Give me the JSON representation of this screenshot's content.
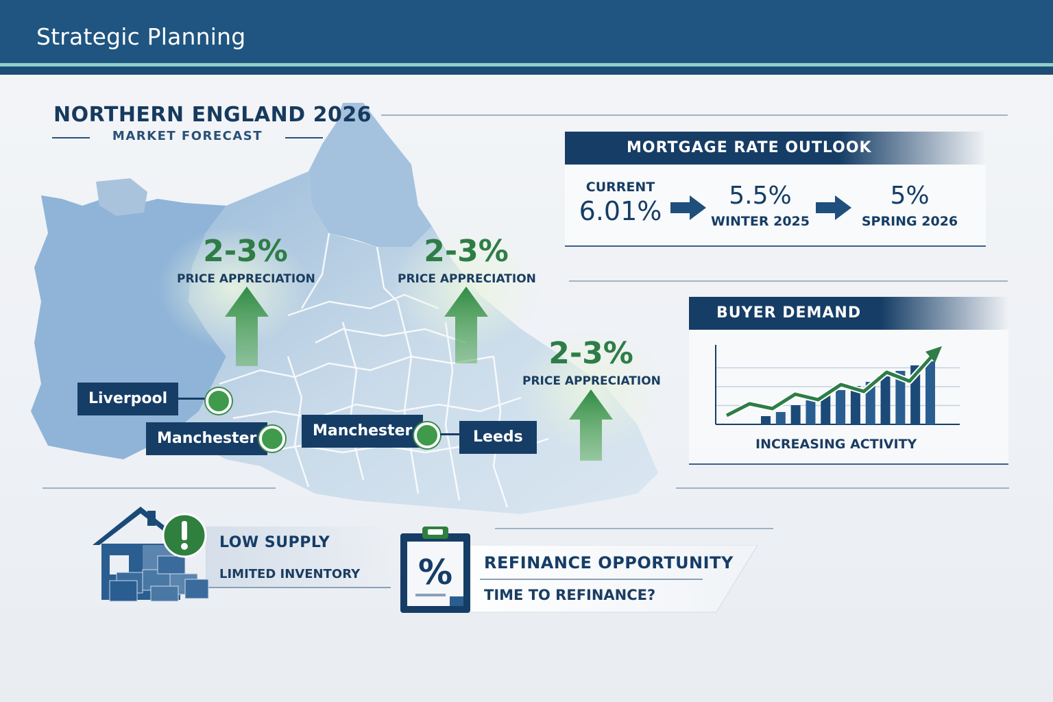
{
  "header": {
    "title": "Strategic Planning"
  },
  "hero": {
    "title": "NORTHERN ENGLAND 2026",
    "subtitle": "MARKET FORECAST"
  },
  "map": {
    "appreciation": [
      {
        "value": "2-3%",
        "label": "PRICE APPRECIATION"
      },
      {
        "value": "2-3%",
        "label": "PRICE APPRECIATION"
      },
      {
        "value": "2-3%",
        "label": "PRICE APPRECIATION"
      }
    ],
    "cities": [
      "Liverpool",
      "Manchester",
      "Manchester",
      "Leeds"
    ]
  },
  "mortgage": {
    "heading": "MORTGAGE RATE OUTLOOK",
    "current": {
      "label": "CURRENT",
      "value": "6.01%"
    },
    "winter": {
      "value": "5.5%",
      "label": "WINTER 2025"
    },
    "spring": {
      "value": "5%",
      "label": "SPRING 2026"
    }
  },
  "demand": {
    "heading": "BUYER DEMAND",
    "caption": "INCREASING ACTIVITY",
    "bars": [
      0.12,
      0.18,
      0.28,
      0.35,
      0.42,
      0.5,
      0.56,
      0.62,
      0.7,
      0.78,
      0.86,
      0.92
    ],
    "trend": [
      0.05,
      0.22,
      0.15,
      0.36,
      0.28,
      0.5,
      0.4,
      0.68,
      0.55,
      0.92
    ]
  },
  "supply": {
    "title": "LOW SUPPLY",
    "subtitle": "LIMITED INVENTORY"
  },
  "refinance": {
    "title": "REFINANCE OPPORTUNITY",
    "subtitle": "TIME TO REFINANCE?"
  },
  "colors": {
    "navy": "#163d66",
    "header": "#1f5580",
    "green": "#3f9a4b",
    "teal": "#8fd0c8"
  }
}
